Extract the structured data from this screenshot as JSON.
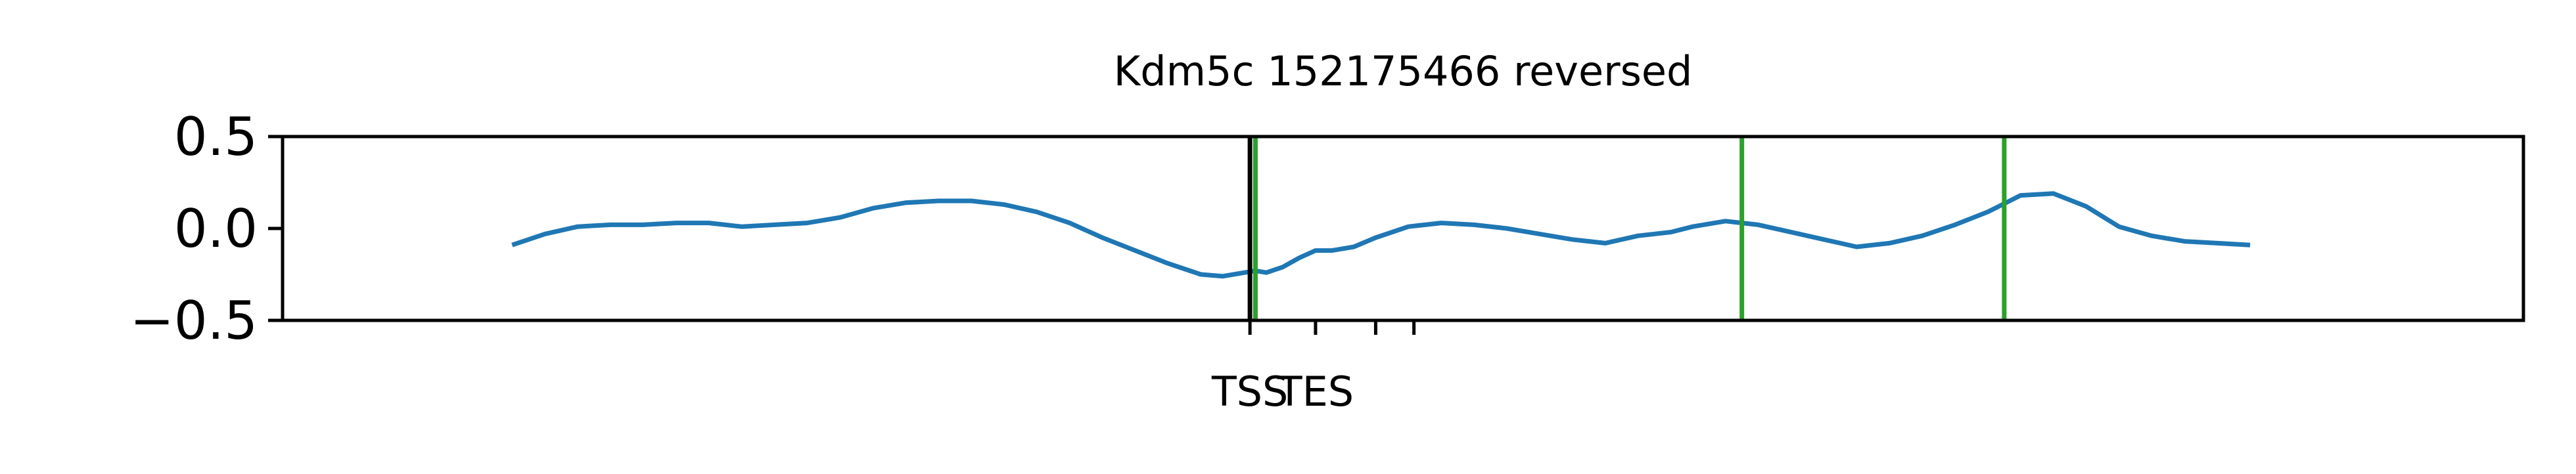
{
  "chart_data": {
    "type": "line",
    "title": "Kdm5c 152175466 reversed",
    "xlabel": "",
    "ylabel": "",
    "xlim": [
      -100,
      4000
    ],
    "ylim": [
      -0.5,
      0.5
    ],
    "yticks": [
      {
        "value": 0.5,
        "label": "0.5"
      },
      {
        "value": 0.0,
        "label": "0.0"
      },
      {
        "value": -0.5,
        "label": "−0.5"
      }
    ],
    "xticks": [
      {
        "value": 1670,
        "label": "TSS"
      },
      {
        "value": 1790,
        "label": "TES"
      }
    ],
    "grid": false,
    "legend": "none",
    "series": [
      {
        "color": "#1f77b4",
        "x": [
          320,
          380,
          440,
          500,
          560,
          620,
          680,
          740,
          800,
          860,
          920,
          980,
          1040,
          1100,
          1160,
          1220,
          1280,
          1340,
          1400,
          1460,
          1520,
          1580,
          1620,
          1640,
          1660,
          1680,
          1700,
          1730,
          1760,
          1790,
          1820,
          1860,
          1900,
          1960,
          2020,
          2080,
          2140,
          2200,
          2260,
          2320,
          2380,
          2440,
          2480,
          2540,
          2600,
          2660,
          2720,
          2780,
          2840,
          2900,
          2960,
          3020,
          3080,
          3140,
          3200,
          3260,
          3320,
          3380,
          3440,
          3500
        ],
        "y": [
          -0.09,
          -0.03,
          0.01,
          0.02,
          0.02,
          0.03,
          0.03,
          0.01,
          0.02,
          0.03,
          0.06,
          0.11,
          0.14,
          0.15,
          0.15,
          0.13,
          0.09,
          0.03,
          -0.05,
          -0.12,
          -0.19,
          -0.25,
          -0.26,
          -0.25,
          -0.24,
          -0.23,
          -0.24,
          -0.21,
          -0.16,
          -0.12,
          -0.12,
          -0.1,
          -0.05,
          0.01,
          0.03,
          0.02,
          0.0,
          -0.03,
          -0.06,
          -0.08,
          -0.04,
          -0.02,
          0.01,
          0.04,
          0.02,
          -0.02,
          -0.06,
          -0.1,
          -0.08,
          -0.04,
          0.02,
          0.09,
          0.18,
          0.19,
          0.12,
          0.01,
          -0.04,
          -0.07,
          -0.08,
          -0.09
        ]
      }
    ],
    "vertical_lines": [
      {
        "x": 1670,
        "color": "#000000"
      },
      {
        "x": 1680,
        "color": "#2ca02c"
      },
      {
        "x": 2570,
        "color": "#2ca02c"
      },
      {
        "x": 3050,
        "color": "#2ca02c"
      }
    ]
  }
}
